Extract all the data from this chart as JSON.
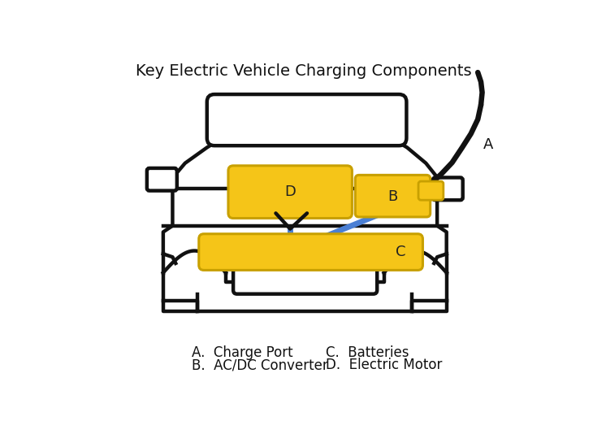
{
  "title": "Key Electric Vehicle Charging Components",
  "title_fontsize": 14,
  "background_color": "#ffffff",
  "car_color": "#111111",
  "highlight_color": "#F5C518",
  "highlight_edge": "#c8a000",
  "blue_color": "#4A7FD4",
  "label_A": "A",
  "label_B": "B",
  "label_C": "C",
  "label_D": "D",
  "legend": [
    "A.  Charge Port",
    "B.  AC/DC Converter",
    "C.  Batteries",
    "D.  Electric Motor"
  ],
  "legend_fontsize": 12
}
